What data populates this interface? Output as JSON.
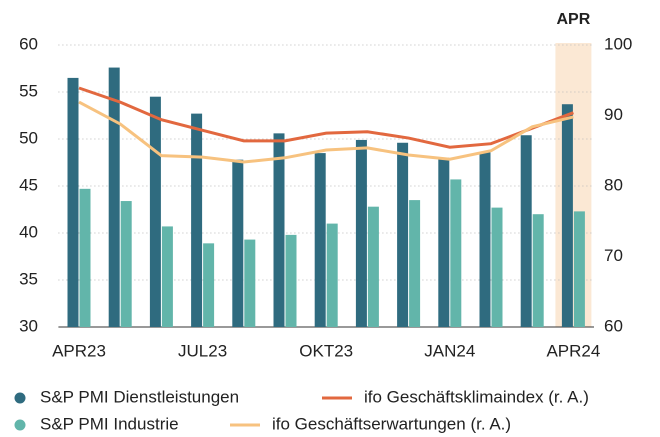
{
  "chart_data": {
    "type": "bar",
    "categories": [
      "APR23",
      null,
      null,
      "JUL23",
      null,
      null,
      "OKT23",
      null,
      null,
      "JAN24",
      null,
      null,
      "APR24"
    ],
    "series": [
      {
        "name": "S&P PMI Dienstleistungen",
        "type": "bar",
        "color": "#2f6b7f",
        "values": [
          56.5,
          57.6,
          54.5,
          52.7,
          47.8,
          50.6,
          48.5,
          49.9,
          49.6,
          48.0,
          48.6,
          50.4,
          53.7
        ]
      },
      {
        "name": "S&P PMI Industrie",
        "type": "bar",
        "color": "#62b5aa",
        "values": [
          44.7,
          43.4,
          40.7,
          38.9,
          39.3,
          39.8,
          41.0,
          42.8,
          43.5,
          45.7,
          42.7,
          42.0,
          42.3
        ]
      },
      {
        "name": "ifo Geschäftsklimaindex (r. A.)",
        "type": "line",
        "axis": "y2",
        "color": "#e2683f",
        "values": [
          93.9,
          91.9,
          89.4,
          87.9,
          86.4,
          86.4,
          87.5,
          87.7,
          86.8,
          85.5,
          86.0,
          88.2,
          90.4
        ]
      },
      {
        "name": "ifo Geschäftserwartungen (r. A.)",
        "type": "line",
        "axis": "y2",
        "color": "#f7c27f",
        "values": [
          91.9,
          88.8,
          84.3,
          84.1,
          83.4,
          84.0,
          85.1,
          85.4,
          84.4,
          83.8,
          85.0,
          88.4,
          89.8
        ]
      }
    ],
    "ylim": [
      30,
      60
    ],
    "yticks": [
      30,
      35,
      40,
      45,
      50,
      55,
      60
    ],
    "y2lim": [
      60,
      100
    ],
    "y2ticks": [
      60,
      70,
      80,
      90,
      100
    ],
    "grid": true,
    "highlight": {
      "label": "APR",
      "category": "APR24",
      "color": "#fbe8d4"
    }
  }
}
